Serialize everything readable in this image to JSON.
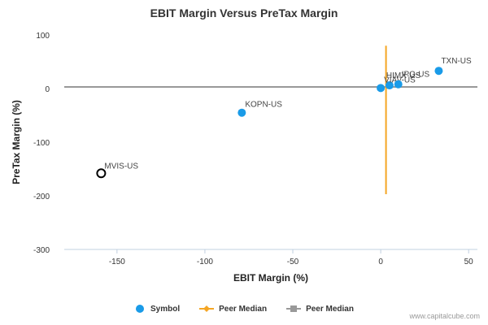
{
  "chart_data": {
    "type": "scatter",
    "title": "EBIT Margin Versus PreTax Margin",
    "xlabel": "EBIT Margin (%)",
    "ylabel": "PreTax Margin (%)",
    "xlim": [
      -180,
      55
    ],
    "ylim": [
      -300,
      100
    ],
    "x_ticks": [
      -150,
      -100,
      -50,
      0,
      50
    ],
    "y_ticks": [
      100,
      0,
      -100,
      -200,
      -300
    ],
    "grid": false,
    "legend_position": "bottom",
    "series": [
      {
        "name": "Symbol",
        "color": "#1a9be8",
        "points": [
          {
            "label": "TXN-US",
            "x": 33,
            "y": 33
          },
          {
            "label": "HIMX-US",
            "x": 5,
            "y": 6
          },
          {
            "label": "KOPN-US",
            "x": -79,
            "y": -45
          },
          {
            "label": "VIAV-US",
            "x": 0,
            "y": 1
          },
          {
            "label": "IPG-US",
            "x": 10,
            "y": 8
          }
        ]
      },
      {
        "name": "Peer Median",
        "color": "#f5a623",
        "orientation": "vertical",
        "x": 3,
        "y_range": [
          -197,
          80
        ]
      },
      {
        "name": "Peer Median",
        "color": "#999999",
        "orientation": "horizontal",
        "y": 3,
        "x_range": [
          -180,
          55
        ]
      }
    ],
    "highlight": {
      "label": "MVIS-US",
      "x": -159,
      "y": -158,
      "color": "#000000"
    }
  },
  "watermark": "www.capitalcube.com"
}
